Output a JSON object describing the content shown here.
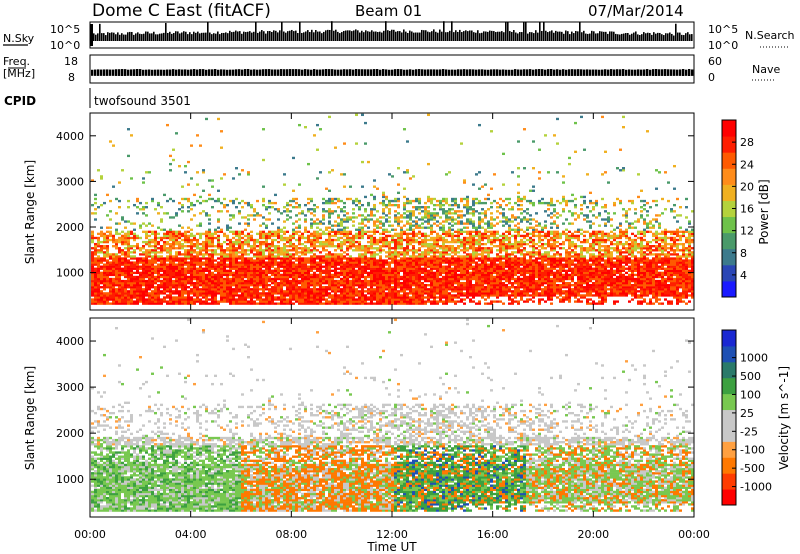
{
  "header": {
    "station": "Dome C East (fitACF)",
    "beam": "Beam 01",
    "date": "07/Mar/2014"
  },
  "noise_panel": {
    "left_label": "N.Sky",
    "right_label": "N.Search",
    "left_ticks": [
      "10^5",
      "10^0"
    ],
    "right_ticks": [
      "10^5",
      "10^0"
    ]
  },
  "freq_panel": {
    "left_label_line1": "Freq.",
    "left_label_line2": "[MHz]",
    "left_ticks": [
      "18",
      "8"
    ],
    "right_label": "Nave",
    "right_ticks": [
      "60",
      "0"
    ]
  },
  "cpid_panel": {
    "label": "CPID",
    "value": "twofsound 3501"
  },
  "colors": {
    "power_scale": [
      "#1a1aff",
      "#2a46b5",
      "#3c7a8c",
      "#4a9a6a",
      "#6ec24a",
      "#b4d23c",
      "#f0b020",
      "#ff8c1a",
      "#ff5a00",
      "#ff1e00",
      "#ff0000"
    ],
    "velocity_scale": [
      "#ff0000",
      "#ff3c00",
      "#ff7800",
      "#ffa040",
      "#c8c8c8",
      "#c8c8c8",
      "#78c850",
      "#3ca040",
      "#2a7a6a",
      "#1e50b4",
      "#1a28d2"
    ]
  },
  "chart_data": [
    {
      "type": "heatmap",
      "name": "power",
      "ylabel": "Slant Range [km]",
      "y_ticks": [
        1000,
        2000,
        3000,
        4000
      ],
      "ylim": [
        180,
        4500
      ],
      "colorbar_label": "Power [dB]",
      "colorbar_ticks": [
        4,
        8,
        12,
        16,
        20,
        24,
        28
      ],
      "colorbar_range": [
        0,
        32
      ]
    },
    {
      "type": "heatmap",
      "name": "velocity",
      "ylabel": "Slant Range [km]",
      "y_ticks": [
        1000,
        2000,
        3000,
        4000
      ],
      "ylim": [
        180,
        4500
      ],
      "colorbar_label": "Velocity [m s^-1]",
      "colorbar_ticks": [
        "1000",
        "500",
        "100",
        "25",
        "-25",
        "-100",
        "-500",
        "-1000"
      ]
    }
  ],
  "x_axis": {
    "label": "Time UT",
    "ticks": [
      "00:00",
      "04:00",
      "08:00",
      "12:00",
      "16:00",
      "20:00",
      "00:00"
    ]
  }
}
